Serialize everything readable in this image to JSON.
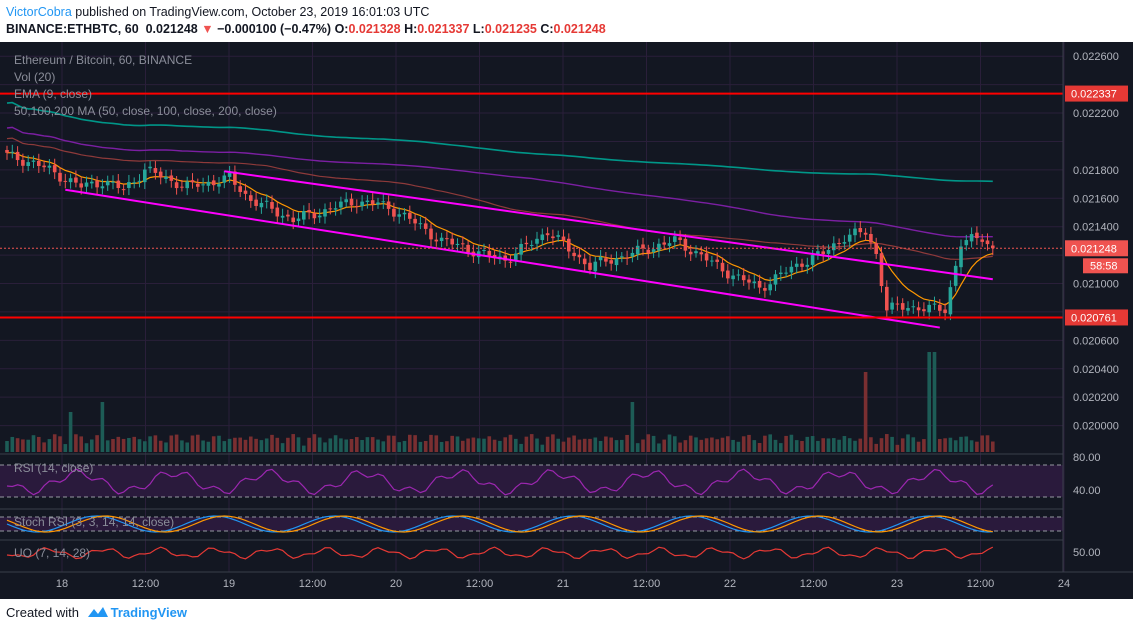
{
  "header": {
    "author": "VictorCobra",
    "published_text": " published on TradingView.com, October 23, 2019 16:01:03 UTC",
    "symbol": "BINANCE:ETHBTC, 60",
    "last": "0.021248",
    "change": "−0.000100 (−0.47%)",
    "o_label": "O:",
    "o": "0.021328",
    "h_label": "H:",
    "h": "0.021337",
    "l_label": "L:",
    "l": "0.021235",
    "c_label": "C:",
    "c": "0.021248"
  },
  "legend": {
    "title": "Ethereum / Bitcoin, 60, BINANCE",
    "vol": "Vol (20)",
    "ema": "EMA (9, close)",
    "ma": "50,100,200 MA (50, close, 100, close, 200, close)"
  },
  "indicators": {
    "rsi": "RSI (14, close)",
    "stoch": "Stoch RSI (3, 3, 14, 14, close)",
    "uo": "UO (7, 14, 28)"
  },
  "price_axis": [
    "0.022600",
    "0.022200",
    "0.021800",
    "0.021600",
    "0.021400",
    "0.021000",
    "0.020600",
    "0.020400",
    "0.020200",
    "0.020000"
  ],
  "level_labels": {
    "resistance": "0.022337",
    "support": "0.020761",
    "current": "0.021248",
    "countdown": "58:58"
  },
  "ind_axis": {
    "rsi_high": "80.00",
    "rsi_low": "40.00",
    "uo": "50.00"
  },
  "time_labels": [
    "18",
    "12:00",
    "19",
    "12:00",
    "20",
    "12:00",
    "21",
    "12:00",
    "22",
    "12:00",
    "23",
    "12:00",
    "24"
  ],
  "footer": {
    "created": "Created with",
    "brand": "TradingView"
  },
  "colors": {
    "background": "#131722",
    "up": "#26a69a",
    "down": "#ef5350",
    "levels": "#ff0000",
    "channel": "#ff00ff",
    "ema": "#ff9800",
    "ma200": "#009688",
    "ma100": "#7b1fa2",
    "ma50": "#8e3a3a",
    "rsi": "#9c27b0",
    "stoch_k": "#2196f3",
    "stoch_d": "#ff9800",
    "uo": "#e53935"
  },
  "chart_data": {
    "type": "candlestick",
    "symbol": "ETHBTC",
    "interval": "60",
    "exchange": "BINANCE",
    "ylim": [
      0.0198,
      0.0227
    ],
    "levels": {
      "resistance": 0.022337,
      "support": 0.020761,
      "last": 0.021248
    },
    "ohlc_last": {
      "open": 0.021328,
      "high": 0.021337,
      "low": 0.021235,
      "close": 0.021248
    },
    "close_path": [
      [
        0,
        0.0219
      ],
      [
        5,
        0.02185
      ],
      [
        10,
        0.02176
      ],
      [
        14,
        0.02168
      ],
      [
        18,
        0.02172
      ],
      [
        22,
        0.02166
      ],
      [
        26,
        0.0218
      ],
      [
        30,
        0.02174
      ],
      [
        34,
        0.02168
      ],
      [
        38,
        0.02171
      ],
      [
        42,
        0.02174
      ],
      [
        46,
        0.02159
      ],
      [
        50,
        0.02152
      ],
      [
        54,
        0.02145
      ],
      [
        58,
        0.02149
      ],
      [
        62,
        0.02154
      ],
      [
        66,
        0.02158
      ],
      [
        70,
        0.02156
      ],
      [
        74,
        0.0215
      ],
      [
        78,
        0.0214
      ],
      [
        82,
        0.0213
      ],
      [
        86,
        0.02126
      ],
      [
        90,
        0.0212
      ],
      [
        94,
        0.02117
      ],
      [
        98,
        0.02126
      ],
      [
        102,
        0.02137
      ],
      [
        106,
        0.02124
      ],
      [
        110,
        0.02112
      ],
      [
        114,
        0.02117
      ],
      [
        118,
        0.02121
      ],
      [
        122,
        0.02126
      ],
      [
        126,
        0.0213
      ],
      [
        130,
        0.02122
      ],
      [
        134,
        0.02112
      ],
      [
        138,
        0.02104
      ],
      [
        142,
        0.02097
      ],
      [
        146,
        0.02106
      ],
      [
        150,
        0.02115
      ],
      [
        154,
        0.02121
      ],
      [
        158,
        0.02133
      ],
      [
        162,
        0.02136
      ],
      [
        164,
        0.02121
      ],
      [
        166,
        0.02082
      ],
      [
        170,
        0.02084
      ],
      [
        174,
        0.02082
      ],
      [
        177,
        0.02082
      ],
      [
        180,
        0.02128
      ],
      [
        184,
        0.02133
      ],
      [
        186,
        0.021248
      ]
    ],
    "trendlines": [
      {
        "name": "upper",
        "from": [
          41,
          0.02179
        ],
        "to": [
          186,
          0.02103
        ]
      },
      {
        "name": "lower",
        "from": [
          11,
          0.02166
        ],
        "to": [
          176,
          0.02069
        ]
      }
    ],
    "volume_spikes": [
      [
        12,
        0.4
      ],
      [
        18,
        0.5
      ],
      [
        118,
        0.5
      ],
      [
        162,
        0.8
      ],
      [
        174,
        1.0
      ],
      [
        175,
        1.0
      ]
    ]
  }
}
